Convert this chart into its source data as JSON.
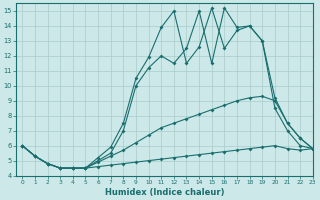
{
  "xlabel": "Humidex (Indice chaleur)",
  "background_color": "#cce8e8",
  "grid_color": "#aacccc",
  "line_color": "#1a6e6e",
  "xlim": [
    -0.5,
    23
  ],
  "ylim": [
    4,
    15.5
  ],
  "yticks": [
    4,
    5,
    6,
    7,
    8,
    9,
    10,
    11,
    12,
    13,
    14,
    15
  ],
  "xticks": [
    0,
    1,
    2,
    3,
    4,
    5,
    6,
    7,
    8,
    9,
    10,
    11,
    12,
    13,
    14,
    15,
    16,
    17,
    18,
    19,
    20,
    21,
    22,
    23
  ],
  "series": [
    {
      "x": [
        0,
        1,
        2,
        3,
        4,
        5,
        6,
        7,
        8,
        9,
        10,
        11,
        12,
        13,
        14,
        15,
        16,
        17,
        18,
        19,
        20,
        21,
        22,
        23
      ],
      "y": [
        6.0,
        5.3,
        4.8,
        4.5,
        4.5,
        4.5,
        5.2,
        5.9,
        7.5,
        10.5,
        11.9,
        13.9,
        15.0,
        11.5,
        12.6,
        15.2,
        12.5,
        13.7,
        14.0,
        13.0,
        9.2,
        7.5,
        6.5,
        5.8
      ]
    },
    {
      "x": [
        0,
        1,
        2,
        3,
        4,
        5,
        6,
        7,
        8,
        9,
        10,
        11,
        12,
        13,
        14,
        15,
        16,
        17,
        18,
        19,
        20,
        21,
        22,
        23
      ],
      "y": [
        6.0,
        5.3,
        4.8,
        4.5,
        4.5,
        4.5,
        5.0,
        5.5,
        7.0,
        10.0,
        11.2,
        12.0,
        11.5,
        12.5,
        15.0,
        11.5,
        15.2,
        13.9,
        14.0,
        13.0,
        8.5,
        7.0,
        6.0,
        5.8
      ]
    },
    {
      "x": [
        0,
        1,
        2,
        3,
        4,
        5,
        6,
        7,
        8,
        9,
        10,
        11,
        12,
        13,
        14,
        15,
        16,
        17,
        18,
        19,
        20,
        21,
        22,
        23
      ],
      "y": [
        6.0,
        5.3,
        4.8,
        4.5,
        4.5,
        4.5,
        4.9,
        5.3,
        5.7,
        6.2,
        6.7,
        7.2,
        7.5,
        7.8,
        8.1,
        8.4,
        8.7,
        9.0,
        9.2,
        9.3,
        9.0,
        7.5,
        6.5,
        5.8
      ]
    },
    {
      "x": [
        0,
        1,
        2,
        3,
        4,
        5,
        6,
        7,
        8,
        9,
        10,
        11,
        12,
        13,
        14,
        15,
        16,
        17,
        18,
        19,
        20,
        21,
        22,
        23
      ],
      "y": [
        6.0,
        5.3,
        4.8,
        4.5,
        4.5,
        4.5,
        4.6,
        4.7,
        4.8,
        4.9,
        5.0,
        5.1,
        5.2,
        5.3,
        5.4,
        5.5,
        5.6,
        5.7,
        5.8,
        5.9,
        6.0,
        5.8,
        5.7,
        5.8
      ]
    }
  ]
}
